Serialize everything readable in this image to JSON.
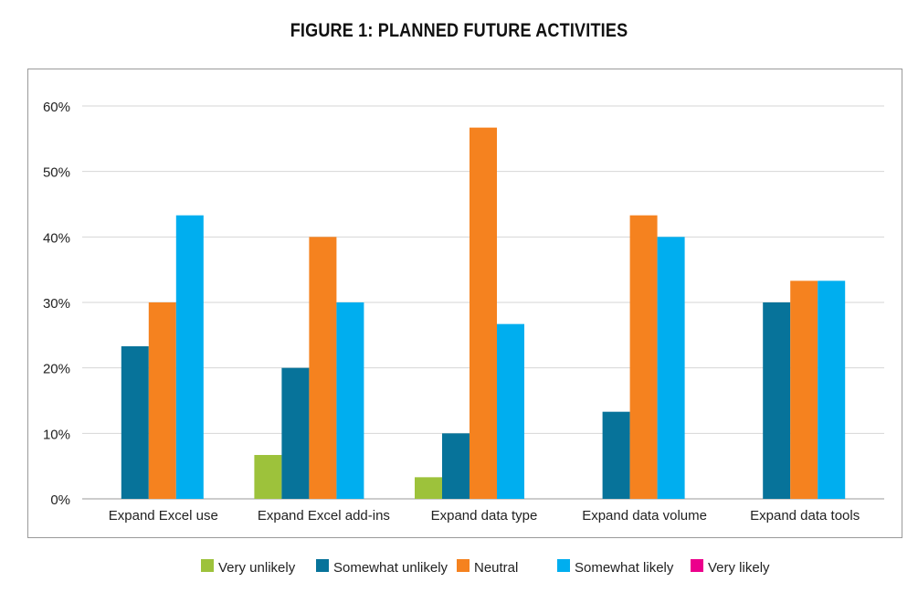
{
  "title": "FIGURE 1: PLANNED FUTURE ACTIVITIES",
  "chart_data": {
    "type": "bar",
    "title": "FIGURE 1: PLANNED FUTURE ACTIVITIES",
    "xlabel": "",
    "ylabel": "",
    "ylim": [
      0,
      60
    ],
    "y_ticks": [
      "0%",
      "10%",
      "20%",
      "30%",
      "40%",
      "50%",
      "60%"
    ],
    "grid": true,
    "legend_position": "bottom",
    "categories": [
      "Expand Excel use",
      "Expand Excel add-ins",
      "Expand data type",
      "Expand data volume",
      "Expand data tools"
    ],
    "series": [
      {
        "name": "Very unlikely",
        "color": "#9dc23b",
        "values": [
          0,
          6.7,
          3.3,
          0,
          0
        ]
      },
      {
        "name": "Somewhat unlikely",
        "color": "#07739a",
        "values": [
          23.3,
          20,
          10,
          13.3,
          30
        ]
      },
      {
        "name": "Neutral",
        "color": "#f5821f",
        "values": [
          30,
          40,
          56.7,
          43.3,
          33.3
        ]
      },
      {
        "name": "Somewhat likely",
        "color": "#00aeef",
        "values": [
          43.3,
          30,
          26.7,
          40,
          33.3
        ]
      },
      {
        "name": "Very likely",
        "color": "#ec008c",
        "values": [
          0,
          0,
          0,
          0,
          0
        ]
      }
    ]
  }
}
